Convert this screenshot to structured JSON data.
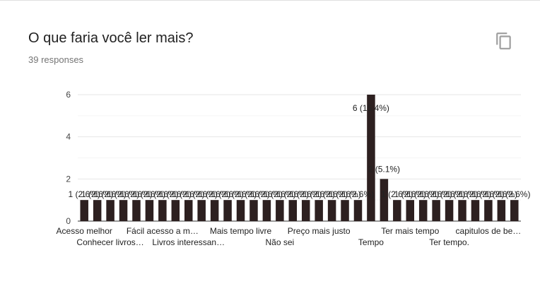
{
  "question": {
    "title": "O que faria você ler mais?",
    "responses": "39 responses",
    "copy_icon": "copy-icon"
  },
  "chart_data": {
    "type": "bar",
    "ylim": [
      0,
      6
    ],
    "yticks": [
      0,
      2,
      4,
      6
    ],
    "grid": true,
    "color": "#2d2020",
    "values": [
      1,
      1,
      1,
      1,
      1,
      1,
      1,
      1,
      1,
      1,
      1,
      1,
      1,
      1,
      1,
      1,
      1,
      1,
      1,
      1,
      1,
      1,
      6,
      2,
      1,
      1,
      1,
      1,
      1,
      1,
      1,
      1,
      1,
      1
    ],
    "data_labels": [
      "1 (2.6%)",
      "1 (2.6%)",
      "1 (2.6%)",
      "1 (2.6%)",
      "1 (2.6%)",
      "1 (2.6%)",
      "1 (2.6%)",
      "1 (2.6%)",
      "1 (2.6%)",
      "1 (2.6%)",
      "1 (2.6%)",
      "1 (2.6%)",
      "1 (2.6%)",
      "1 (2.6%)",
      "1 (2.6%)",
      "1 (2.6%)",
      "1 (2.6%)",
      "1 (2.6%)",
      "1 (2.6%)",
      "1 (2.6%)",
      "1 (2.6%)",
      "1 (2.6%)",
      "6 (15.4%)",
      "2 (5.1%)",
      "1 (2.6%)",
      "1 (2.6%)",
      "1 (2.6%)",
      "1 (2.6%)",
      "1 (2.6%)",
      "1 (2.6%)",
      "1 (2.6%)",
      "1 (2.6%)",
      "1 (2.6%)",
      "1 (2.6%)"
    ],
    "x_tick_labels": [
      {
        "index": 0,
        "text": "Acesso melhor",
        "row": 0
      },
      {
        "index": 2,
        "text": "Conhecer livros…",
        "row": 1
      },
      {
        "index": 6,
        "text": "Fácil acesso a m…",
        "row": 0
      },
      {
        "index": 8,
        "text": "Livros interessan…",
        "row": 1
      },
      {
        "index": 12,
        "text": "Mais tempo livre",
        "row": 0
      },
      {
        "index": 15,
        "text": "Não sei",
        "row": 1
      },
      {
        "index": 18,
        "text": "Preço mais justo",
        "row": 0
      },
      {
        "index": 22,
        "text": "Tempo",
        "row": 1
      },
      {
        "index": 25,
        "text": "Ter mais tempo",
        "row": 0
      },
      {
        "index": 28,
        "text": "Ter tempo.",
        "row": 1
      },
      {
        "index": 31,
        "text": "capitulos de be…",
        "row": 0
      }
    ]
  }
}
